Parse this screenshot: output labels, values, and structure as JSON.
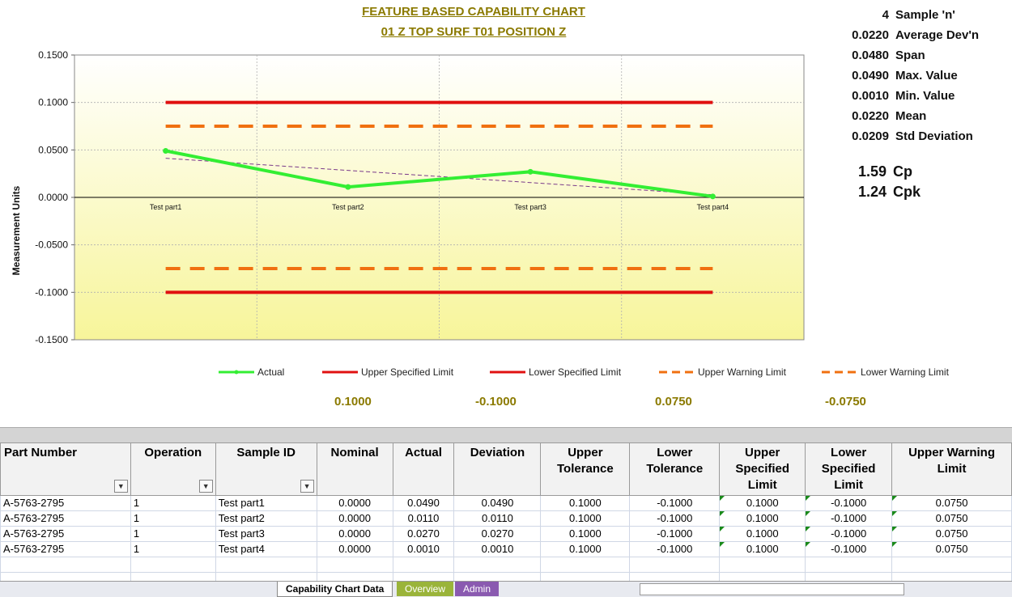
{
  "title_line1": "FEATURE BASED CAPABILITY CHART",
  "title_line2": "01 Z TOP SURF T01 POSITION Z",
  "stats": [
    {
      "value": "4",
      "label": "Sample 'n'"
    },
    {
      "value": "0.0220",
      "label": "Average Dev'n"
    },
    {
      "value": "0.0480",
      "label": "Span"
    },
    {
      "value": "0.0490",
      "label": "Max. Value"
    },
    {
      "value": "0.0010",
      "label": "Min. Value"
    },
    {
      "value": "0.0220",
      "label": "Mean"
    },
    {
      "value": "0.0209",
      "label": "Std Deviation"
    }
  ],
  "cp": {
    "value": "1.59",
    "label": "Cp"
  },
  "cpk": {
    "value": "1.24",
    "label": "Cpk"
  },
  "colors": {
    "actual": "#33ee33",
    "spec": "#e01010",
    "warn": "#f07010",
    "trend": "#7a3a8a",
    "title": "#8b7a00"
  },
  "chart_data": {
    "type": "line",
    "ylabel": "Measurement Units",
    "ylim": [
      -0.15,
      0.15
    ],
    "yticks": [
      "0.1500",
      "0.1000",
      "0.0500",
      "0.0000",
      "-0.0500",
      "-0.1000",
      "-0.1500"
    ],
    "categories": [
      "Test part1",
      "Test part2",
      "Test part3",
      "Test part4"
    ],
    "series": [
      {
        "name": "Actual",
        "values": [
          0.049,
          0.011,
          0.027,
          0.001
        ]
      },
      {
        "name": "Upper Specified Limit",
        "values": [
          0.1,
          0.1,
          0.1,
          0.1
        ]
      },
      {
        "name": "Lower Specified Limit",
        "values": [
          -0.1,
          -0.1,
          -0.1,
          -0.1
        ]
      },
      {
        "name": "Upper Warning Limit",
        "values": [
          0.075,
          0.075,
          0.075,
          0.075
        ]
      },
      {
        "name": "Lower Warning Limit",
        "values": [
          -0.075,
          -0.075,
          -0.075,
          -0.075
        ]
      }
    ],
    "trendline": [
      0.0412,
      0.0284,
      0.0156,
      0.0028
    ],
    "legend": [
      "Actual",
      "Upper Specified Limit",
      "Lower Specified Limit",
      "Upper Warning Limit",
      "Lower Warning Limit"
    ]
  },
  "limit_values": [
    "0.1000",
    "-0.1000",
    "0.0750",
    "-0.0750"
  ],
  "table": {
    "headers": [
      "Part Number",
      "Operation",
      "Sample ID",
      "Nominal",
      "Actual",
      "Deviation",
      "Upper Tolerance",
      "Lower Tolerance",
      "Upper Specified Limit",
      "Lower Specified Limit",
      "Upper Warning Limit"
    ],
    "rows": [
      [
        "A-5763-2795",
        "1",
        "Test part1",
        "0.0000",
        "0.0490",
        "0.0490",
        "0.1000",
        "-0.1000",
        "0.1000",
        "-0.1000",
        "0.0750"
      ],
      [
        "A-5763-2795",
        "1",
        "Test part2",
        "0.0000",
        "0.0110",
        "0.0110",
        "0.1000",
        "-0.1000",
        "0.1000",
        "-0.1000",
        "0.0750"
      ],
      [
        "A-5763-2795",
        "1",
        "Test part3",
        "0.0000",
        "0.0270",
        "0.0270",
        "0.1000",
        "-0.1000",
        "0.1000",
        "-0.1000",
        "0.0750"
      ],
      [
        "A-5763-2795",
        "1",
        "Test part4",
        "0.0000",
        "0.0010",
        "0.0010",
        "0.1000",
        "-0.1000",
        "0.1000",
        "-0.1000",
        "0.0750"
      ]
    ]
  },
  "tabs": [
    "Capability Chart Data",
    "Overview",
    "Admin"
  ]
}
